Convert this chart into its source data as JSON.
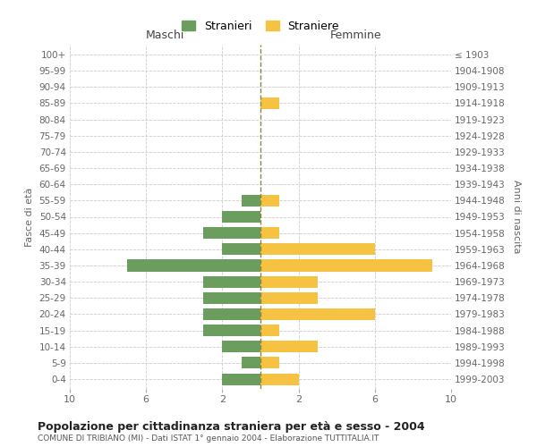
{
  "age_groups": [
    "0-4",
    "5-9",
    "10-14",
    "15-19",
    "20-24",
    "25-29",
    "30-34",
    "35-39",
    "40-44",
    "45-49",
    "50-54",
    "55-59",
    "60-64",
    "65-69",
    "70-74",
    "75-79",
    "80-84",
    "85-89",
    "90-94",
    "95-99",
    "100+"
  ],
  "birth_years": [
    "1999-2003",
    "1994-1998",
    "1989-1993",
    "1984-1988",
    "1979-1983",
    "1974-1978",
    "1969-1973",
    "1964-1968",
    "1959-1963",
    "1954-1958",
    "1949-1953",
    "1944-1948",
    "1939-1943",
    "1934-1938",
    "1929-1933",
    "1924-1928",
    "1919-1923",
    "1914-1918",
    "1909-1913",
    "1904-1908",
    "≤ 1903"
  ],
  "maschi": [
    2,
    1,
    2,
    3,
    3,
    3,
    3,
    7,
    2,
    3,
    2,
    1,
    0,
    0,
    0,
    0,
    0,
    0,
    0,
    0,
    0
  ],
  "femmine": [
    2,
    1,
    3,
    1,
    6,
    3,
    3,
    9,
    6,
    1,
    0,
    1,
    0,
    0,
    0,
    0,
    0,
    1,
    0,
    0,
    0
  ],
  "maschi_color": "#6b9e5e",
  "femmine_color": "#f5c242",
  "center_line_color": "#888844",
  "background_color": "#ffffff",
  "grid_color": "#cccccc",
  "title": "Popolazione per cittadinanza straniera per età e sesso - 2004",
  "subtitle": "COMUNE DI TRIBIANO (MI) - Dati ISTAT 1° gennaio 2004 - Elaborazione TUTTITALIA.IT",
  "xlabel_left": "Maschi",
  "xlabel_right": "Femmine",
  "ylabel_left": "Fasce di età",
  "ylabel_right": "Anni di nascita",
  "legend_maschi": "Stranieri",
  "legend_femmine": "Straniere",
  "xlim": 10
}
